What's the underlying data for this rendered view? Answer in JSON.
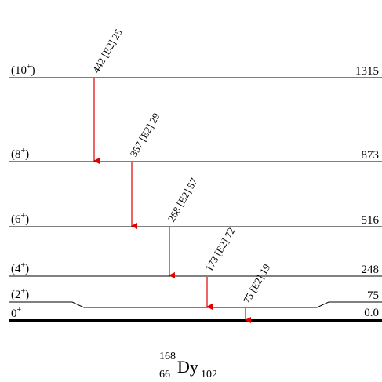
{
  "levels": [
    {
      "spin_base": "(10",
      "spin_sup": "+",
      "spin_close": ")",
      "energy": "1315"
    },
    {
      "spin_base": "(8",
      "spin_sup": "+",
      "spin_close": ")",
      "energy": "873"
    },
    {
      "spin_base": "(6",
      "spin_sup": "+",
      "spin_close": ")",
      "energy": "516"
    },
    {
      "spin_base": "(4",
      "spin_sup": "+",
      "spin_close": ")",
      "energy": "248"
    },
    {
      "spin_base": "(2",
      "spin_sup": "+",
      "spin_close": ")",
      "energy": "75"
    },
    {
      "spin_base": "0",
      "spin_sup": "+",
      "spin_close": "",
      "energy": "0.0"
    }
  ],
  "transitions": [
    {
      "label": "442 [E2] 25"
    },
    {
      "label": "357 [E2] 29"
    },
    {
      "label": "268 [E2] 57"
    },
    {
      "label": "173 [E2] 72"
    },
    {
      "label": "75 [E2] 19"
    }
  ],
  "nucleus": {
    "mass_number": "168",
    "atomic_number": "66",
    "symbol": "Dy",
    "neutron_number": "102"
  },
  "colors": {
    "transition_arrow": "#e00000",
    "level_line": "#000000"
  }
}
